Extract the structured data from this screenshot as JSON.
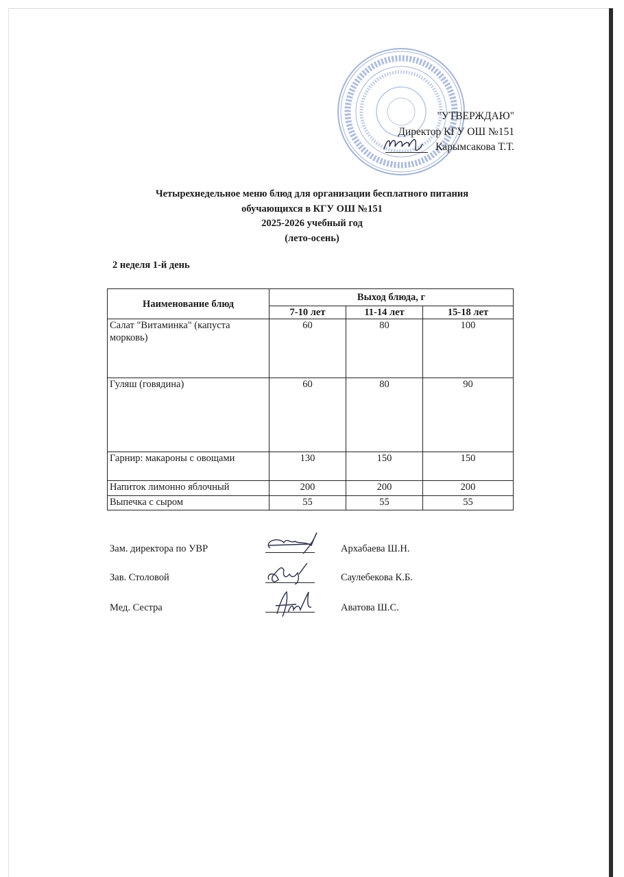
{
  "approval": {
    "heading": "\"УТВЕРЖДАЮ\"",
    "position": "Директор КГУ ОШ №151",
    "name": "Карымсакова Т.Т.",
    "stamp_text": "ҚАЗАҚСТАН РЕСПУБЛИКАСЫ • АЛМАТЫ ҚАЛАСЫ БІЛІМ БАСҚАРМАСЫ • ЖАЛПЫ БІЛІМ БЕРЕТІН МЕКТЕП • КОММУНАЛДЫҚ МЕМЛЕКЕТТІК МЕКЕМЕСІ •",
    "stamp_color": "#7f95c4"
  },
  "title": {
    "line1": "Четырехнедельное меню блюд для организации бесплатного питания",
    "line2": "обучающихся в КГУ ОШ №151",
    "line3": "2025-2026 учебный год",
    "line4": "(лето-осень)"
  },
  "day_label": "2 неделя 1-й день",
  "table": {
    "col_name": "Наименование блюд",
    "col_group": "Выход блюда, г",
    "age_groups": [
      "7-10 лет",
      "11-14 лет",
      "15-18 лет"
    ],
    "rows": [
      {
        "name": "Салат \"Витаминка\" (капуста морковь)",
        "values": [
          "60",
          "80",
          "100"
        ]
      },
      {
        "name": "Гуляш (говядина)",
        "values": [
          "60",
          "80",
          "90"
        ]
      },
      {
        "name": "Гарнир: макароны с овощами",
        "values": [
          "130",
          "150",
          "150"
        ]
      },
      {
        "name": "Напиток лимонно яблочный",
        "values": [
          "200",
          "200",
          "200"
        ]
      },
      {
        "name": "Выпечка с сыром",
        "values": [
          "55",
          "55",
          "55"
        ]
      }
    ]
  },
  "signatures": [
    {
      "role": "Зам. директора по УВР",
      "name": "Архабаева Ш.Н."
    },
    {
      "role": "Зав. Столовой",
      "name": "Саулебекова К.Б."
    },
    {
      "role": "Мед. Сестра",
      "name": "Аватова Ш.С."
    }
  ]
}
